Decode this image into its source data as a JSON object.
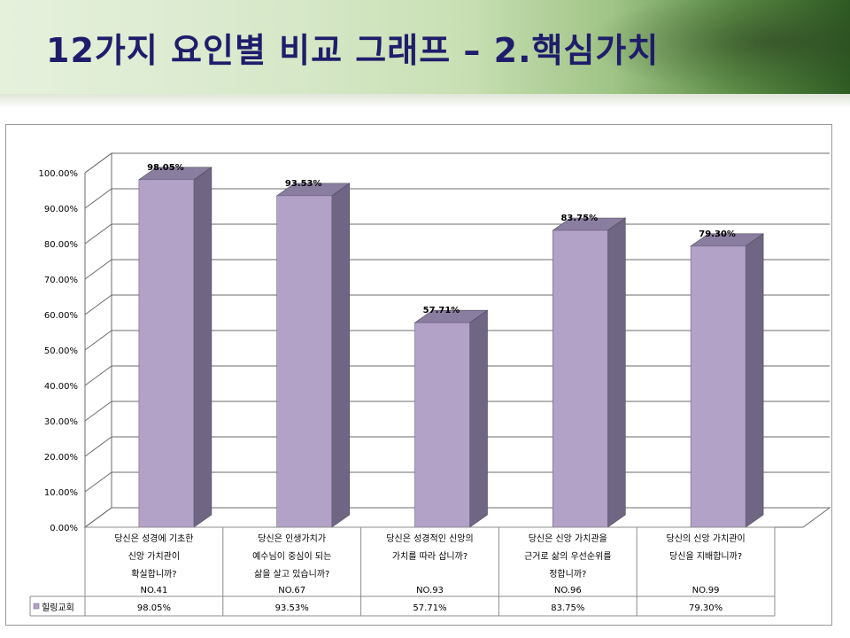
{
  "slide": {
    "title": "12가지 요인별 비교 그래프 – 2.핵심가치"
  },
  "colors": {
    "bar_front": "#b2a2c8",
    "bar_side": "#6f6684",
    "bar_top": "#8a7ea0",
    "grid": "#6b6b6b",
    "title": "#1f1d6b"
  },
  "chart_data": {
    "type": "bar",
    "categories": [
      [
        "당신은 성경에 기초한",
        "신앙 가치관이",
        "확실합니까?"
      ],
      [
        "당신은 인생가치가",
        "예수님이 중심이 되는",
        "삶을 살고 있습니까?"
      ],
      [
        "당신은 성경적인 신앙의",
        "가치를 따라 삽니까?"
      ],
      [
        "당신은 신앙 가치관을",
        "근거로 삶의 우선순위를",
        "정합니까?"
      ],
      [
        "당신의 신앙 가치관이",
        "당신을 지배합니까?"
      ]
    ],
    "question_numbers": [
      "NO.41",
      "NO.67",
      "NO.93",
      "NO.96",
      "NO.99"
    ],
    "series": [
      {
        "name": "힐링교회",
        "values": [
          98.05,
          93.53,
          57.71,
          83.75,
          79.3
        ]
      }
    ],
    "data_labels": [
      "98.05%",
      "93.53%",
      "57.71%",
      "83.75%",
      "79.30%"
    ],
    "y_ticks": [
      "0.00%",
      "10.00%",
      "20.00%",
      "30.00%",
      "40.00%",
      "50.00%",
      "60.00%",
      "70.00%",
      "80.00%",
      "90.00%",
      "100.00%"
    ],
    "ylim": [
      0,
      100
    ],
    "data_table": true,
    "legend": "in-table"
  }
}
